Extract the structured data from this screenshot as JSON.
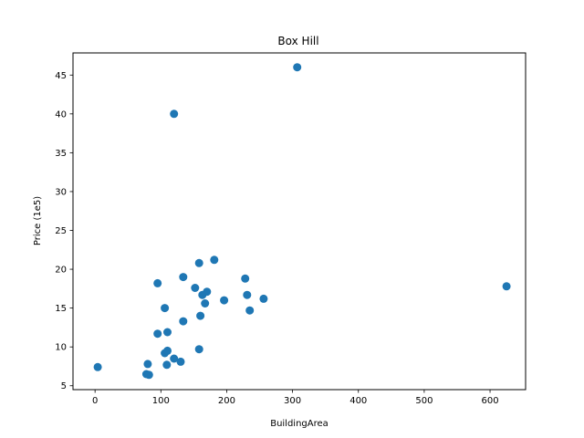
{
  "chart_data": {
    "type": "scatter",
    "title": "Box Hill",
    "xlabel": "BuildingArea",
    "ylabel": "Price (1e5)",
    "xlim": [
      -33.5,
      654
    ],
    "ylim": [
      4.5,
      47.85
    ],
    "xticks": [
      0,
      100,
      200,
      300,
      400,
      500,
      600
    ],
    "yticks": [
      5,
      10,
      15,
      20,
      25,
      30,
      35,
      40,
      45
    ],
    "grid": false,
    "marker_color": "#1f77b4",
    "points": [
      {
        "x": 4,
        "y": 7.4
      },
      {
        "x": 78,
        "y": 6.5
      },
      {
        "x": 82,
        "y": 6.4
      },
      {
        "x": 80,
        "y": 7.8
      },
      {
        "x": 95,
        "y": 11.7
      },
      {
        "x": 95,
        "y": 18.2
      },
      {
        "x": 106,
        "y": 15.0
      },
      {
        "x": 106,
        "y": 9.2
      },
      {
        "x": 110,
        "y": 9.5
      },
      {
        "x": 109,
        "y": 7.7
      },
      {
        "x": 110,
        "y": 11.9
      },
      {
        "x": 120,
        "y": 40.0
      },
      {
        "x": 120,
        "y": 8.5
      },
      {
        "x": 130,
        "y": 8.1
      },
      {
        "x": 134,
        "y": 13.3
      },
      {
        "x": 134,
        "y": 19.0
      },
      {
        "x": 152,
        "y": 17.6
      },
      {
        "x": 158,
        "y": 20.8
      },
      {
        "x": 160,
        "y": 14.0
      },
      {
        "x": 158,
        "y": 9.7
      },
      {
        "x": 163,
        "y": 16.7
      },
      {
        "x": 167,
        "y": 15.6
      },
      {
        "x": 170,
        "y": 17.1
      },
      {
        "x": 181,
        "y": 21.2
      },
      {
        "x": 196,
        "y": 16.0
      },
      {
        "x": 228,
        "y": 18.8
      },
      {
        "x": 231,
        "y": 16.7
      },
      {
        "x": 235,
        "y": 14.7
      },
      {
        "x": 256,
        "y": 16.2
      },
      {
        "x": 307,
        "y": 46.0
      },
      {
        "x": 625,
        "y": 17.8
      }
    ]
  }
}
